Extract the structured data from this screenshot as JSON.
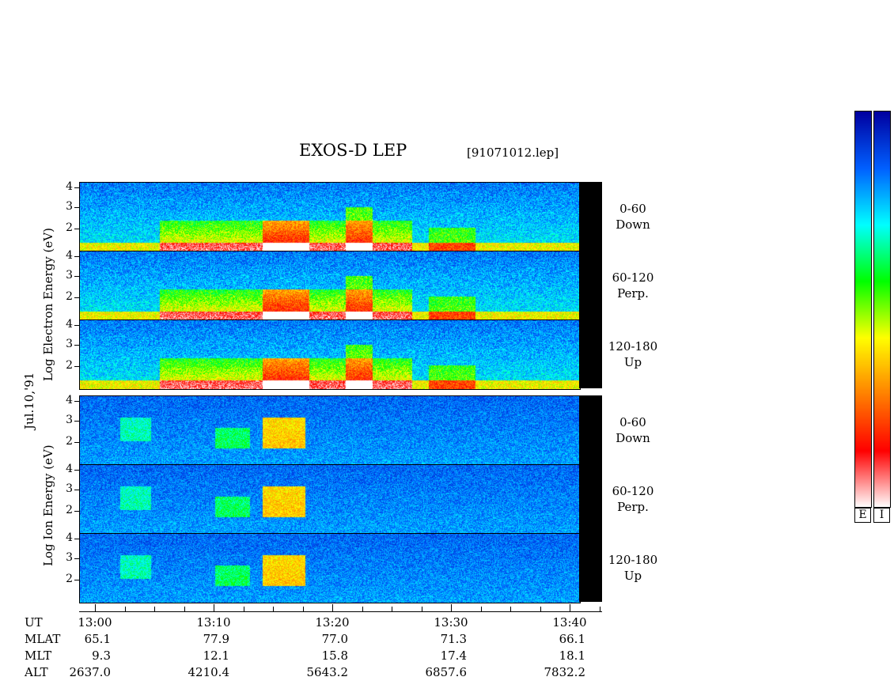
{
  "chart_data": {
    "type": "heatmap",
    "title": "EXOS-D LEP",
    "subtitle": "[91071012.lep]",
    "date_label": "Jul.10,'91",
    "electron_ylabel": "Log  Electron  Energy (eV)",
    "ion_ylabel": "Log  Ion  Energy (eV)",
    "yticks": [
      "4",
      "3",
      "2"
    ],
    "panels": [
      {
        "species": "Electron",
        "pitch": "0-60",
        "direction": "Down"
      },
      {
        "species": "Electron",
        "pitch": "60-120",
        "direction": "Perp."
      },
      {
        "species": "Electron",
        "pitch": "120-180",
        "direction": "Up"
      },
      {
        "species": "Ion",
        "pitch": "0-60",
        "direction": "Down"
      },
      {
        "species": "Ion",
        "pitch": "60-120",
        "direction": "Perp."
      },
      {
        "species": "Ion",
        "pitch": "120-180",
        "direction": "Up"
      }
    ],
    "x_axis": {
      "row_labels": [
        "UT",
        "MLAT",
        "MLT",
        "ALT"
      ],
      "ticks": [
        {
          "UT": "13:00",
          "MLAT": "65.1",
          "MLT": "9.3",
          "ALT": "2637.0"
        },
        {
          "UT": "13:10",
          "MLAT": "77.9",
          "MLT": "12.1",
          "ALT": "4210.4"
        },
        {
          "UT": "13:20",
          "MLAT": "77.0",
          "MLT": "15.8",
          "ALT": "5643.2"
        },
        {
          "UT": "13:30",
          "MLAT": "71.3",
          "MLT": "17.4",
          "ALT": "6857.6"
        },
        {
          "UT": "13:40",
          "MLAT": "66.1",
          "MLT": "18.1",
          "ALT": "7832.2"
        }
      ]
    },
    "colorbars": [
      {
        "label": "E"
      },
      {
        "label": "I"
      }
    ],
    "colormap": [
      "#ffffff",
      "#ff0000",
      "#ff8000",
      "#ffff00",
      "#00ff00",
      "#00ffff",
      "#0060ff",
      "#0000a0"
    ]
  }
}
